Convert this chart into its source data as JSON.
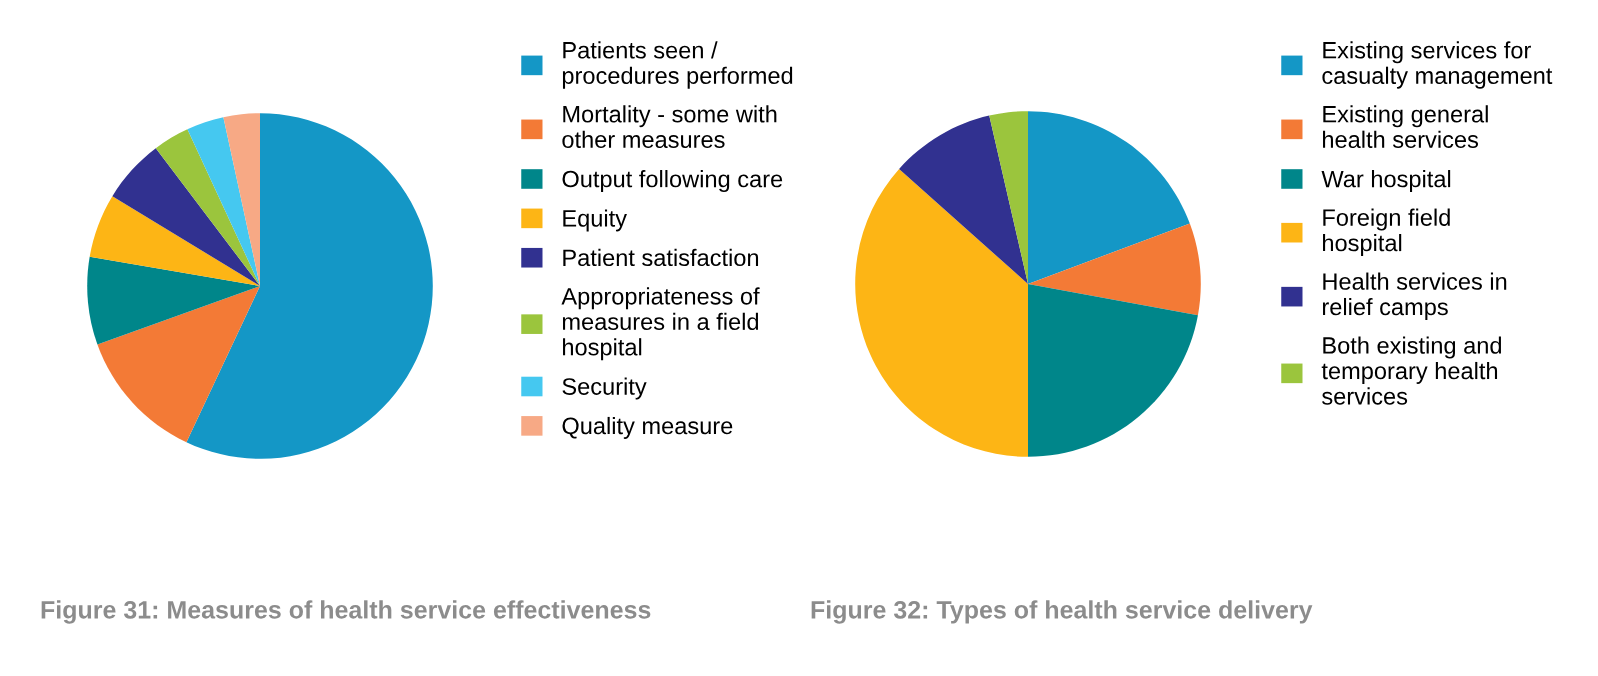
{
  "chart_data": [
    {
      "type": "pie",
      "title": "Figure 31: Measures of health service effectiveness",
      "legend": "right",
      "categories": [
        "Patients seen / procedures performed",
        "Mortality - some with other measures",
        "Output following care",
        "Equity",
        "Patient satisfaction",
        "Appropriateness of measures in a field hospital",
        "Security",
        "Quality measure"
      ],
      "values": [
        57,
        12.5,
        8.2,
        6,
        6,
        3.4,
        3.5,
        3.4
      ],
      "colors": [
        "#1497c6",
        "#f37a36",
        "#00868a",
        "#fdb515",
        "#313190",
        "#9bc53d",
        "#45c8f0",
        "#f7a985"
      ]
    },
    {
      "type": "pie",
      "title": "Figure 32: Types of health service delivery",
      "legend": "right",
      "categories": [
        "Existing services for casualty management",
        "Existing general health services",
        "War hospital",
        "Foreign field hospital",
        "Health services in relief camps",
        "Both existing and temporary health services"
      ],
      "values": [
        19.3,
        8.6,
        22.1,
        36.6,
        9.8,
        3.6
      ],
      "colors": [
        "#1497c6",
        "#f37a36",
        "#00868a",
        "#fdb515",
        "#313190",
        "#9bc53d"
      ]
    }
  ]
}
